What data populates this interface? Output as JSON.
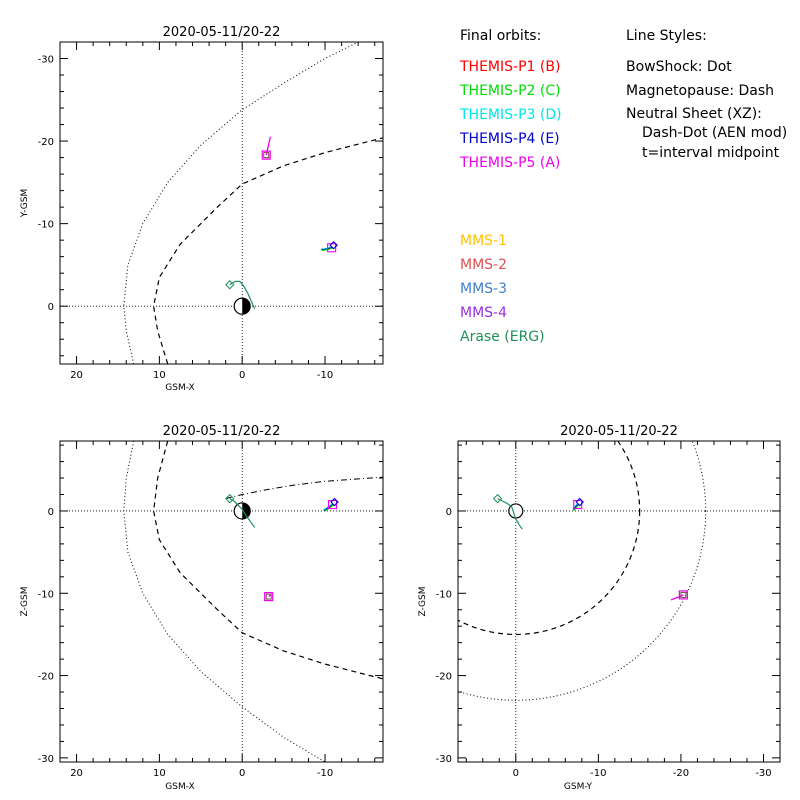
{
  "legend": {
    "orbits_header": "Final orbits:",
    "orbits": [
      {
        "label": "THEMIS-P1 (B)",
        "color": "#ff0000"
      },
      {
        "label": "THEMIS-P2 (C)",
        "color": "#00dd00"
      },
      {
        "label": "THEMIS-P3 (D)",
        "color": "#00e6e6"
      },
      {
        "label": "THEMIS-P4 (E)",
        "color": "#0000cc"
      },
      {
        "label": "THEMIS-P5 (A)",
        "color": "#ee00ee"
      }
    ],
    "styles_header": "Line Styles:",
    "styles": [
      "BowShock: Dot",
      "Magnetopause: Dash",
      "Neutral Sheet (XZ):",
      "Dash-Dot (AEN mod)",
      "t=interval midpoint"
    ],
    "missions": [
      {
        "label": "MMS-1",
        "color": "#ffc000"
      },
      {
        "label": "MMS-2",
        "color": "#e05050"
      },
      {
        "label": "MMS-3",
        "color": "#4080d0"
      },
      {
        "label": "MMS-4",
        "color": "#9a30e0"
      },
      {
        "label": "Arase (ERG)",
        "color": "#20905a"
      }
    ]
  },
  "chart_data": [
    {
      "type": "line",
      "panel": "xy",
      "title": "2020-05-11/20-22",
      "xlabel": "GSM-X",
      "ylabel": "Y-GSM",
      "xlim": [
        22,
        -17
      ],
      "ylim": [
        7,
        -32
      ],
      "xticks": [
        20,
        10,
        0,
        -10
      ],
      "yticks": [
        0,
        -10,
        -20,
        -30
      ],
      "bow_shock": {
        "x": [
          13.1,
          14.0,
          14.3,
          13.8,
          12.0,
          9.0,
          5.0,
          0.0,
          -5.0,
          -10.0,
          -15.0
        ],
        "y": [
          7.0,
          3.0,
          0.0,
          -5.0,
          -10.0,
          -15.0,
          -19.5,
          -23.8,
          -27.0,
          -30.0,
          -32.5
        ]
      },
      "magnetopause": {
        "x": [
          9.0,
          10.2,
          10.7,
          10.0,
          7.5,
          3.0,
          0.0,
          -5.0,
          -10.0,
          -17.0
        ],
        "y": [
          7.0,
          3.0,
          0.0,
          -3.5,
          -7.5,
          -12.0,
          -14.8,
          -17.0,
          -18.6,
          -20.4
        ]
      },
      "arase_orbit": {
        "x": [
          1.5,
          1.2,
          0.8,
          0.3,
          -0.2,
          -0.7,
          -1.1,
          -1.5
        ],
        "y": [
          -2.6,
          -2.8,
          -3.0,
          -3.0,
          -2.4,
          -1.5,
          -0.6,
          0.3
        ]
      },
      "themis_p5": {
        "x": [
          -3.4,
          -3.1,
          -2.9
        ],
        "y": [
          -20.5,
          -19.2,
          -18.3
        ]
      },
      "themis_group": {
        "x": [
          -9.5,
          -10.2,
          -10.8
        ],
        "y": [
          -6.9,
          -7.0,
          -7.2
        ]
      }
    },
    {
      "type": "line",
      "panel": "xz",
      "title": "2020-05-11/20-22",
      "xlabel": "GSM-X",
      "ylabel": "Z-GSM",
      "xlim": [
        22,
        -17
      ],
      "ylim": [
        -30.5,
        8.5
      ],
      "xticks": [
        20,
        10,
        0,
        -10
      ],
      "yticks": [
        0,
        -10,
        -20,
        -30
      ],
      "bow_shock": {
        "x": [
          13.1,
          14.0,
          14.3,
          13.8,
          12.0,
          9.0,
          5.0,
          0.0,
          -5.0,
          -10.0
        ],
        "y": [
          8.5,
          4.0,
          0.0,
          -5.0,
          -10.0,
          -15.0,
          -19.5,
          -23.8,
          -27.5,
          -30.5
        ]
      },
      "magnetopause": {
        "x": [
          9.0,
          10.2,
          10.7,
          10.0,
          7.5,
          3.0,
          0.0,
          -5.0,
          -10.0,
          -17.0
        ],
        "y": [
          8.5,
          4.0,
          0.0,
          -3.5,
          -7.5,
          -12.0,
          -14.8,
          -17.0,
          -18.6,
          -20.4
        ]
      },
      "neutral_sheet": {
        "x": [
          2.0,
          0.0,
          -3.0,
          -6.0,
          -10.0,
          -14.0,
          -17.0
        ],
        "y": [
          1.5,
          2.0,
          2.6,
          3.1,
          3.6,
          3.9,
          4.1
        ]
      },
      "arase_orbit": {
        "x": [
          1.5,
          1.0,
          0.5,
          0.0,
          -0.5,
          -1.0,
          -1.5
        ],
        "y": [
          1.5,
          1.2,
          0.7,
          0.2,
          -0.6,
          -1.3,
          -2.0
        ]
      },
      "themis_p5": {
        "x": [
          -3.4,
          -3.2
        ],
        "y": [
          -10.2,
          -10.4
        ]
      },
      "themis_group": {
        "x": [
          -9.8,
          -10.4,
          -10.9
        ],
        "y": [
          0.1,
          0.5,
          0.9
        ]
      }
    },
    {
      "type": "line",
      "panel": "yz",
      "title": "2020-05-11/20-22",
      "xlabel": "GSM-Y",
      "ylabel": "Z-GSM",
      "xlim": [
        7,
        -32
      ],
      "ylim": [
        -30.5,
        8.5
      ],
      "xticks": [
        0,
        -10,
        -20,
        -30
      ],
      "yticks": [
        0,
        -10,
        -20,
        -30
      ],
      "bow_shock_radius": 23,
      "magnetopause_radius": 15,
      "arase_orbit": {
        "x": [
          2.2,
          1.6,
          1.0,
          0.5,
          0.0,
          -0.5,
          -0.8
        ],
        "y": [
          1.5,
          1.2,
          0.9,
          0.5,
          -1.0,
          -1.8,
          -2.2
        ]
      },
      "themis_p5": {
        "x": [
          -18.8,
          -19.6,
          -20.3
        ],
        "y": [
          -10.8,
          -10.5,
          -10.2
        ]
      },
      "themis_group": {
        "x": [
          -6.9,
          -7.2,
          -7.5
        ],
        "y": [
          0.2,
          0.6,
          0.9
        ]
      }
    }
  ]
}
